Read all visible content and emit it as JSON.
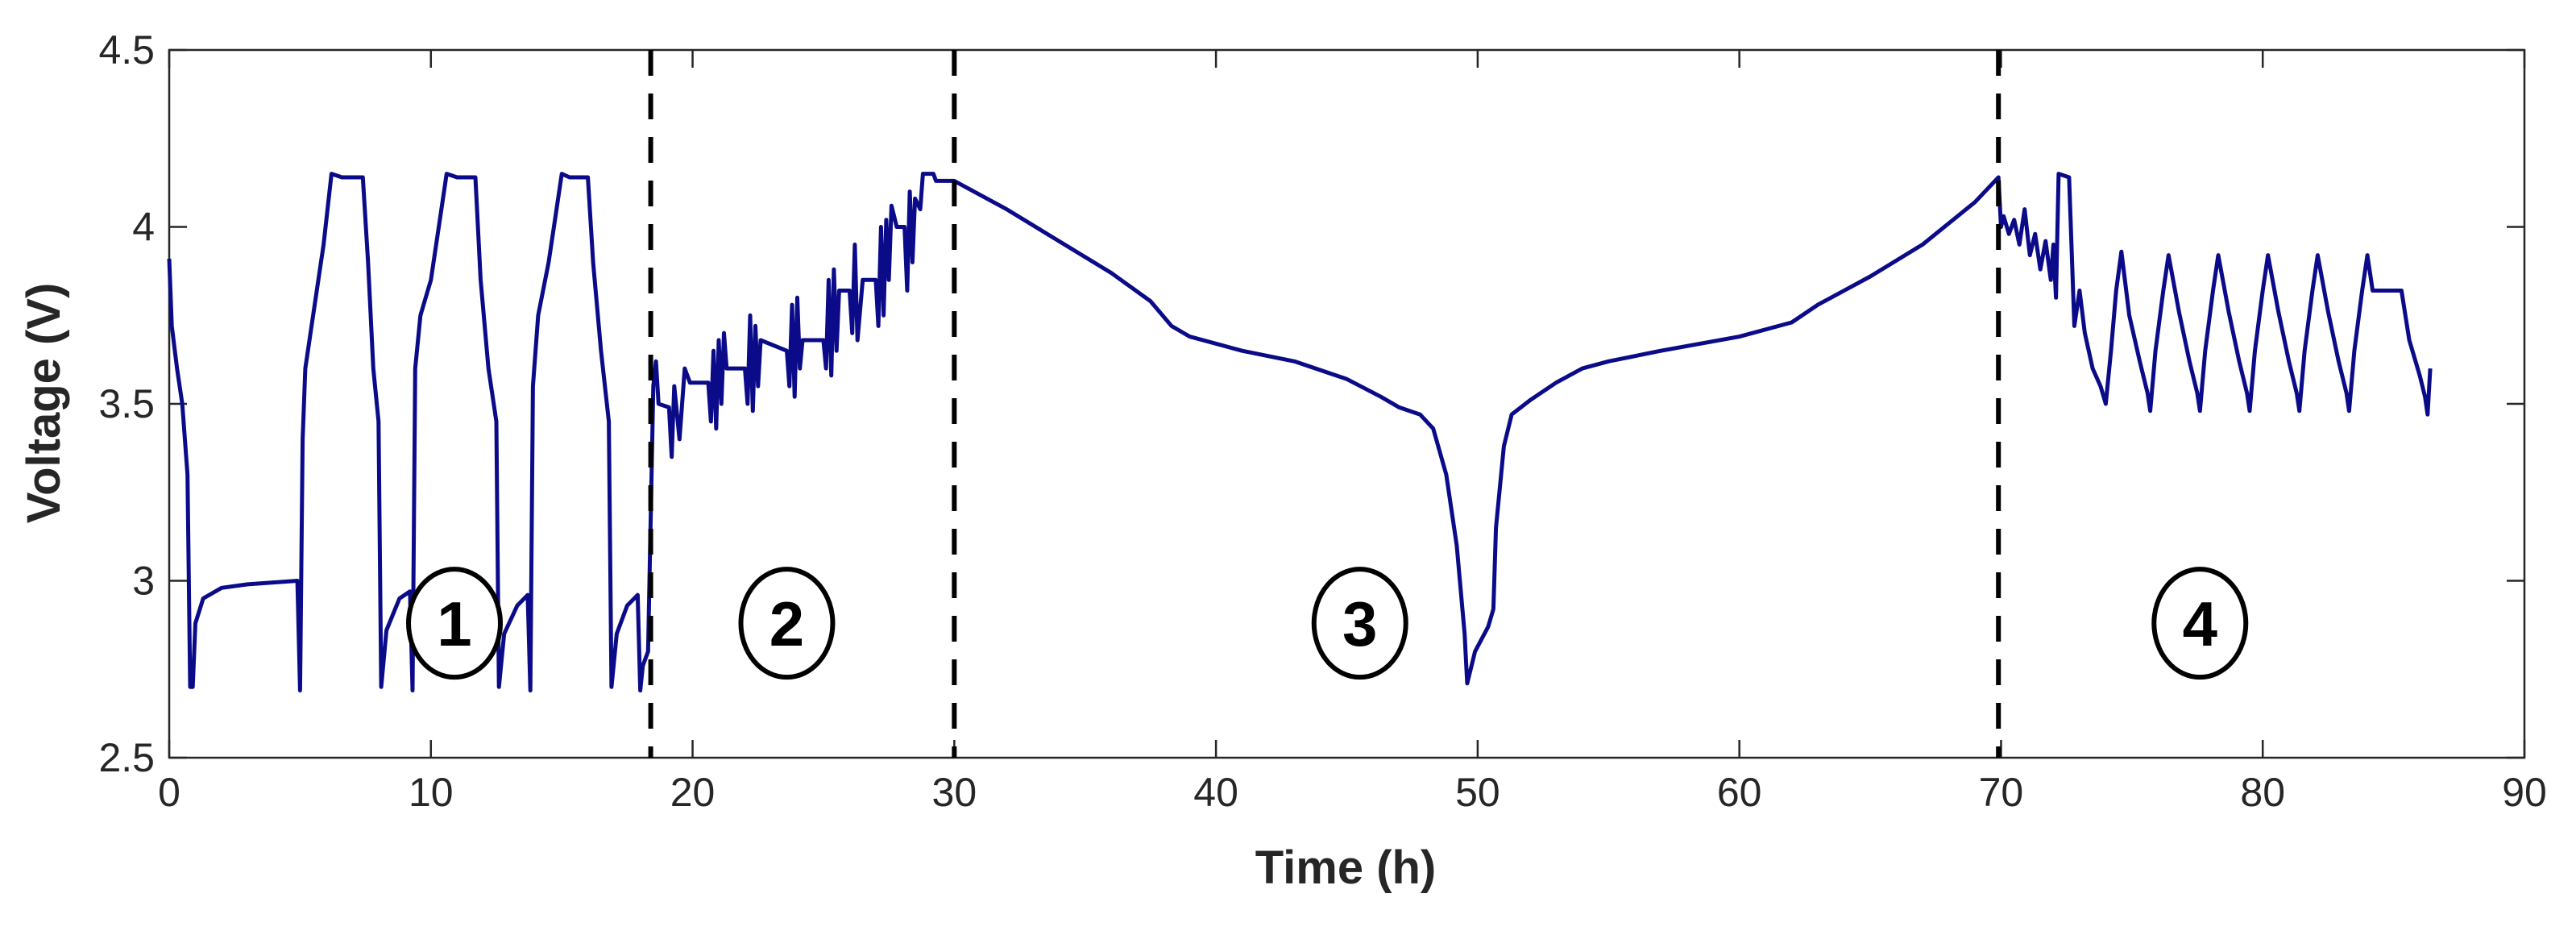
{
  "chart_data": {
    "type": "line",
    "xlabel": "Time (h)",
    "ylabel": "Voltage (V)",
    "xlim": [
      0,
      90
    ],
    "ylim": [
      2.5,
      4.5
    ],
    "xticks": [
      0,
      10,
      20,
      30,
      40,
      50,
      60,
      70,
      80,
      90
    ],
    "yticks": [
      2.5,
      3,
      3.5,
      4,
      4.5
    ],
    "xtick_labels": [
      "0",
      "10",
      "20",
      "30",
      "40",
      "50",
      "60",
      "70",
      "80",
      "90"
    ],
    "ytick_labels": [
      "2.5",
      "3",
      "3.5",
      "4",
      "4.5"
    ],
    "grid": false,
    "line_color": "#0b0b8a",
    "dividers": [
      18.4,
      30.0,
      69.9
    ],
    "zones": [
      {
        "label": "1",
        "x": 10.9,
        "y": 2.88
      },
      {
        "label": "2",
        "x": 23.6,
        "y": 2.88
      },
      {
        "label": "3",
        "x": 45.5,
        "y": 2.88
      },
      {
        "label": "4",
        "x": 77.6,
        "y": 2.88
      }
    ],
    "series": [
      {
        "points": [
          [
            0,
            3.91
          ],
          [
            0.1,
            3.72
          ],
          [
            0.3,
            3.6
          ],
          [
            0.5,
            3.5
          ],
          [
            0.7,
            3.3
          ],
          [
            0.8,
            2.7
          ],
          [
            0.9,
            2.7
          ],
          [
            1.0,
            2.88
          ],
          [
            1.3,
            2.95
          ],
          [
            2,
            2.98
          ],
          [
            3,
            2.99
          ],
          [
            4.9,
            3.0
          ],
          [
            5.0,
            2.69
          ],
          [
            5.1,
            3.4
          ],
          [
            5.2,
            3.6
          ],
          [
            5.5,
            3.75
          ],
          [
            5.9,
            3.95
          ],
          [
            6.2,
            4.15
          ],
          [
            6.6,
            4.14
          ],
          [
            7.4,
            4.14
          ],
          [
            7.6,
            3.9
          ],
          [
            7.8,
            3.6
          ],
          [
            8.0,
            3.45
          ],
          [
            8.1,
            2.7
          ],
          [
            8.3,
            2.86
          ],
          [
            8.8,
            2.95
          ],
          [
            9.2,
            2.97
          ],
          [
            9.3,
            2.69
          ],
          [
            9.4,
            3.6
          ],
          [
            9.6,
            3.75
          ],
          [
            10.0,
            3.85
          ],
          [
            10.4,
            4.05
          ],
          [
            10.6,
            4.15
          ],
          [
            11.0,
            4.14
          ],
          [
            11.7,
            4.14
          ],
          [
            11.9,
            3.85
          ],
          [
            12.2,
            3.6
          ],
          [
            12.5,
            3.45
          ],
          [
            12.6,
            2.7
          ],
          [
            12.8,
            2.85
          ],
          [
            13.3,
            2.93
          ],
          [
            13.7,
            2.96
          ],
          [
            13.8,
            2.69
          ],
          [
            13.9,
            3.55
          ],
          [
            14.1,
            3.75
          ],
          [
            14.5,
            3.9
          ],
          [
            14.8,
            4.05
          ],
          [
            15.0,
            4.15
          ],
          [
            15.3,
            4.14
          ],
          [
            16.0,
            4.14
          ],
          [
            16.2,
            3.9
          ],
          [
            16.5,
            3.65
          ],
          [
            16.8,
            3.45
          ],
          [
            16.9,
            2.7
          ],
          [
            17.1,
            2.85
          ],
          [
            17.5,
            2.93
          ],
          [
            17.9,
            2.96
          ],
          [
            18.0,
            2.69
          ],
          [
            18.1,
            2.76
          ],
          [
            18.3,
            2.8
          ],
          [
            18.5,
            3.55
          ],
          [
            18.6,
            3.62
          ],
          [
            18.7,
            3.5
          ],
          [
            19.1,
            3.49
          ],
          [
            19.2,
            3.35
          ],
          [
            19.3,
            3.55
          ],
          [
            19.5,
            3.4
          ],
          [
            19.7,
            3.6
          ],
          [
            19.9,
            3.56
          ],
          [
            20.6,
            3.56
          ],
          [
            20.7,
            3.45
          ],
          [
            20.8,
            3.65
          ],
          [
            20.9,
            3.43
          ],
          [
            21.0,
            3.68
          ],
          [
            21.1,
            3.5
          ],
          [
            21.2,
            3.7
          ],
          [
            21.3,
            3.6
          ],
          [
            22.0,
            3.6
          ],
          [
            22.1,
            3.5
          ],
          [
            22.2,
            3.75
          ],
          [
            22.3,
            3.48
          ],
          [
            22.4,
            3.72
          ],
          [
            22.5,
            3.55
          ],
          [
            22.6,
            3.68
          ],
          [
            23.6,
            3.65
          ],
          [
            23.7,
            3.55
          ],
          [
            23.8,
            3.78
          ],
          [
            23.9,
            3.52
          ],
          [
            24.0,
            3.8
          ],
          [
            24.1,
            3.6
          ],
          [
            24.2,
            3.68
          ],
          [
            25.0,
            3.68
          ],
          [
            25.1,
            3.6
          ],
          [
            25.2,
            3.85
          ],
          [
            25.3,
            3.58
          ],
          [
            25.4,
            3.88
          ],
          [
            25.5,
            3.65
          ],
          [
            25.6,
            3.82
          ],
          [
            26.0,
            3.82
          ],
          [
            26.1,
            3.7
          ],
          [
            26.2,
            3.95
          ],
          [
            26.3,
            3.68
          ],
          [
            26.5,
            3.85
          ],
          [
            27.0,
            3.85
          ],
          [
            27.1,
            3.72
          ],
          [
            27.2,
            4.0
          ],
          [
            27.3,
            3.75
          ],
          [
            27.4,
            4.02
          ],
          [
            27.5,
            3.85
          ],
          [
            27.6,
            4.06
          ],
          [
            27.8,
            4.0
          ],
          [
            28.1,
            4.0
          ],
          [
            28.2,
            3.82
          ],
          [
            28.3,
            4.1
          ],
          [
            28.4,
            3.9
          ],
          [
            28.5,
            4.08
          ],
          [
            28.7,
            4.05
          ],
          [
            28.8,
            4.15
          ],
          [
            29.2,
            4.15
          ],
          [
            29.3,
            4.13
          ],
          [
            30.0,
            4.13
          ],
          [
            32,
            4.05
          ],
          [
            34,
            3.96
          ],
          [
            36,
            3.87
          ],
          [
            37.5,
            3.79
          ],
          [
            38.3,
            3.72
          ],
          [
            39,
            3.69
          ],
          [
            41,
            3.65
          ],
          [
            43,
            3.62
          ],
          [
            45,
            3.57
          ],
          [
            46.3,
            3.52
          ],
          [
            47,
            3.49
          ],
          [
            47.8,
            3.47
          ],
          [
            48.3,
            3.43
          ],
          [
            48.8,
            3.3
          ],
          [
            49.2,
            3.1
          ],
          [
            49.5,
            2.85
          ],
          [
            49.6,
            2.71
          ],
          [
            49.9,
            2.8
          ],
          [
            50.4,
            2.87
          ],
          [
            50.6,
            2.92
          ],
          [
            50.7,
            3.15
          ],
          [
            51.0,
            3.38
          ],
          [
            51.3,
            3.47
          ],
          [
            52,
            3.51
          ],
          [
            53,
            3.56
          ],
          [
            54,
            3.6
          ],
          [
            55,
            3.62
          ],
          [
            57,
            3.65
          ],
          [
            60,
            3.69
          ],
          [
            62,
            3.73
          ],
          [
            63,
            3.78
          ],
          [
            65,
            3.86
          ],
          [
            67,
            3.95
          ],
          [
            69,
            4.07
          ],
          [
            69.9,
            4.14
          ],
          [
            70.0,
            4.0
          ],
          [
            70.1,
            4.03
          ],
          [
            70.3,
            3.98
          ],
          [
            70.5,
            4.02
          ],
          [
            70.7,
            3.95
          ],
          [
            70.9,
            4.05
          ],
          [
            71.1,
            3.92
          ],
          [
            71.3,
            3.98
          ],
          [
            71.5,
            3.88
          ],
          [
            71.7,
            3.96
          ],
          [
            71.9,
            3.85
          ],
          [
            72.0,
            3.95
          ],
          [
            72.1,
            3.8
          ],
          [
            72.2,
            4.15
          ],
          [
            72.6,
            4.14
          ],
          [
            72.8,
            3.72
          ],
          [
            73.0,
            3.82
          ],
          [
            73.2,
            3.7
          ],
          [
            73.5,
            3.6
          ],
          [
            73.8,
            3.55
          ],
          [
            74.0,
            3.5
          ],
          [
            74.2,
            3.65
          ],
          [
            74.4,
            3.82
          ],
          [
            74.6,
            3.93
          ],
          [
            74.9,
            3.75
          ],
          [
            75.3,
            3.62
          ],
          [
            75.6,
            3.53
          ],
          [
            75.7,
            3.48
          ],
          [
            75.9,
            3.65
          ],
          [
            76.2,
            3.82
          ],
          [
            76.4,
            3.92
          ],
          [
            76.8,
            3.76
          ],
          [
            77.2,
            3.62
          ],
          [
            77.5,
            3.53
          ],
          [
            77.6,
            3.48
          ],
          [
            77.8,
            3.65
          ],
          [
            78.1,
            3.82
          ],
          [
            78.3,
            3.92
          ],
          [
            78.7,
            3.76
          ],
          [
            79.1,
            3.62
          ],
          [
            79.4,
            3.53
          ],
          [
            79.5,
            3.48
          ],
          [
            79.7,
            3.65
          ],
          [
            80.0,
            3.82
          ],
          [
            80.2,
            3.92
          ],
          [
            80.6,
            3.76
          ],
          [
            81.0,
            3.62
          ],
          [
            81.3,
            3.53
          ],
          [
            81.4,
            3.48
          ],
          [
            81.6,
            3.65
          ],
          [
            81.9,
            3.82
          ],
          [
            82.1,
            3.92
          ],
          [
            82.5,
            3.76
          ],
          [
            82.9,
            3.62
          ],
          [
            83.2,
            3.53
          ],
          [
            83.3,
            3.48
          ],
          [
            83.5,
            3.65
          ],
          [
            83.8,
            3.82
          ],
          [
            84.0,
            3.92
          ],
          [
            84.2,
            3.82
          ],
          [
            85.3,
            3.82
          ],
          [
            85.6,
            3.68
          ],
          [
            86.0,
            3.58
          ],
          [
            86.2,
            3.52
          ],
          [
            86.3,
            3.47
          ],
          [
            86.4,
            3.6
          ]
        ]
      }
    ]
  }
}
